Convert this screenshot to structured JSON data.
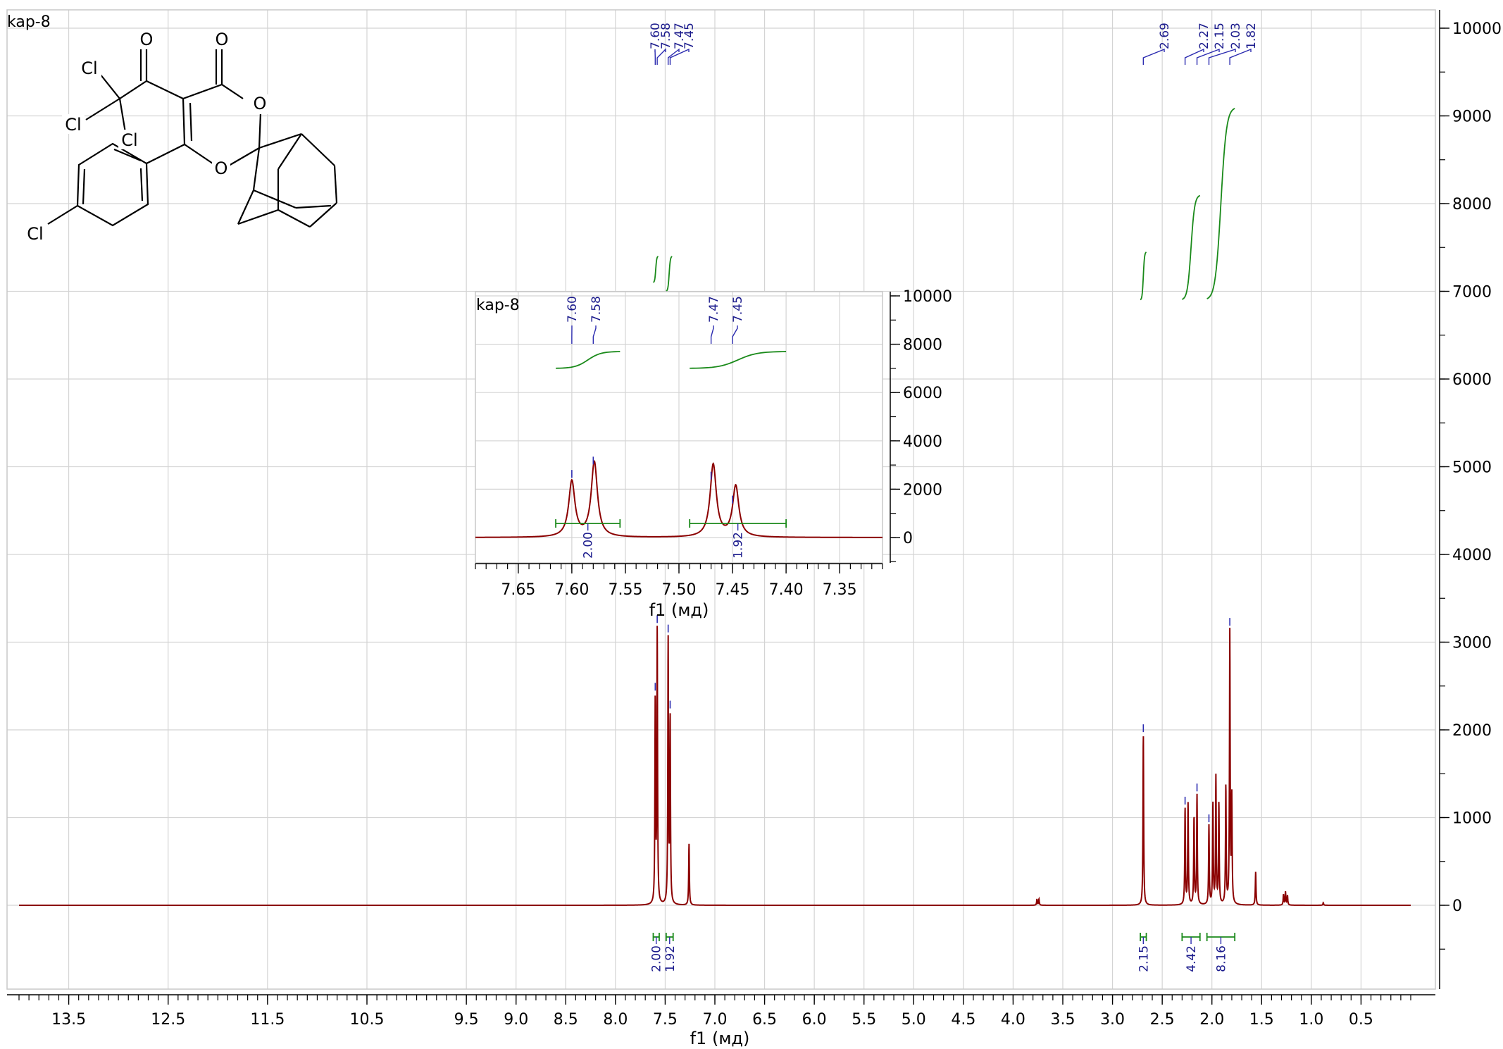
{
  "sample_label": "kap-8",
  "structure_atoms": [
    "O",
    "O",
    "Cl",
    "O",
    "Cl",
    "Cl",
    "O",
    "Cl"
  ],
  "chart_data": [
    {
      "type": "line",
      "title": "",
      "sample_label": "kap-8",
      "xlabel": "f1 (мд)",
      "ylabel": "",
      "xlim": [
        14.0,
        0.0
      ],
      "ylim": [
        -1000,
        10200
      ],
      "x_reversed": true,
      "grid": true,
      "xticks": [
        "13.5",
        "12.5",
        "11.5",
        "10.5",
        "9.5",
        "9.0",
        "8.5",
        "8.0",
        "7.5",
        "7.0",
        "6.5",
        "6.0",
        "5.5",
        "5.0",
        "4.5",
        "4.0",
        "3.5",
        "3.0",
        "2.5",
        "2.0",
        "1.5",
        "1.0",
        "0.5"
      ],
      "xtick_values": [
        13.5,
        12.5,
        11.5,
        10.5,
        9.5,
        9.0,
        8.5,
        8.0,
        7.5,
        7.0,
        6.5,
        6.0,
        5.5,
        5.0,
        4.5,
        4.0,
        3.5,
        3.0,
        2.5,
        2.0,
        1.5,
        1.0,
        0.5
      ],
      "yticks": [
        "10000",
        "9000",
        "8000",
        "7000",
        "6000",
        "5000",
        "4000",
        "3000",
        "2000",
        "1000",
        "0"
      ],
      "ytick_values": [
        10000,
        9000,
        8000,
        7000,
        6000,
        5000,
        4000,
        3000,
        2000,
        1000,
        0
      ],
      "peaks": [
        {
          "x": 7.6,
          "y": 2300
        },
        {
          "x": 7.58,
          "y": 3100
        },
        {
          "x": 7.47,
          "y": 3000
        },
        {
          "x": 7.45,
          "y": 2100
        },
        {
          "x": 7.26,
          "y": 700
        },
        {
          "x": 3.76,
          "y": 70
        },
        {
          "x": 3.74,
          "y": 70
        },
        {
          "x": 2.69,
          "y": 1950
        },
        {
          "x": 2.27,
          "y": 1100
        },
        {
          "x": 2.24,
          "y": 1150
        },
        {
          "x": 2.18,
          "y": 1000
        },
        {
          "x": 2.15,
          "y": 1250
        },
        {
          "x": 2.03,
          "y": 900
        },
        {
          "x": 1.99,
          "y": 1150
        },
        {
          "x": 1.96,
          "y": 1450
        },
        {
          "x": 1.93,
          "y": 1150
        },
        {
          "x": 1.86,
          "y": 1350
        },
        {
          "x": 1.82,
          "y": 3100
        },
        {
          "x": 1.8,
          "y": 1200
        },
        {
          "x": 1.56,
          "y": 380
        },
        {
          "x": 1.28,
          "y": 120
        },
        {
          "x": 1.26,
          "y": 150
        },
        {
          "x": 1.24,
          "y": 110
        },
        {
          "x": 0.88,
          "y": 30
        }
      ],
      "peak_labels": [
        "7.60",
        "7.58",
        "7.47",
        "7.45",
        "2.69",
        "2.27",
        "2.15",
        "2.03",
        "1.82"
      ],
      "peak_label_values": [
        7.6,
        7.58,
        7.47,
        7.45,
        2.69,
        2.27,
        2.15,
        2.03,
        1.82
      ],
      "integrals": [
        {
          "label": "2.00",
          "from": 7.62,
          "to": 7.56
        },
        {
          "label": "1.92",
          "from": 7.49,
          "to": 7.42
        },
        {
          "label": "2.15",
          "from": 2.72,
          "to": 2.66
        },
        {
          "label": "4.42",
          "from": 2.3,
          "to": 2.12
        },
        {
          "label": "8.16",
          "from": 2.05,
          "to": 1.77
        }
      ],
      "integral_curves": [
        {
          "from": 7.62,
          "to": 7.57,
          "y0": 7100,
          "y1": 7400
        },
        {
          "from": 7.49,
          "to": 7.43,
          "y0": 7000,
          "y1": 7400
        },
        {
          "from": 2.72,
          "to": 2.66,
          "y0": 6900,
          "y1": 7450
        },
        {
          "from": 2.3,
          "to": 2.12,
          "y0": 6900,
          "y1": 8100
        },
        {
          "from": 2.05,
          "to": 1.77,
          "y0": 6900,
          "y1": 9100
        }
      ]
    },
    {
      "type": "line",
      "title": "",
      "sample_label": "kap-8",
      "xlabel": "f1 (мд)",
      "ylabel": "",
      "xlim": [
        7.69,
        7.31
      ],
      "ylim": [
        -1000,
        10000
      ],
      "x_reversed": true,
      "grid": true,
      "xticks": [
        "7.65",
        "7.60",
        "7.55",
        "7.50",
        "7.45",
        "7.40",
        "7.35"
      ],
      "xtick_values": [
        7.65,
        7.6,
        7.55,
        7.5,
        7.45,
        7.4,
        7.35
      ],
      "yticks": [
        "10000",
        "8000",
        "6000",
        "4000",
        "2000",
        "0"
      ],
      "ytick_values": [
        10000,
        8000,
        6000,
        4000,
        2000,
        0
      ],
      "peaks": [
        {
          "x": 7.6,
          "y": 2300
        },
        {
          "x": 7.579,
          "y": 3100
        },
        {
          "x": 7.468,
          "y": 3000
        },
        {
          "x": 7.447,
          "y": 2100
        }
      ],
      "peak_labels": [
        "7.60",
        "7.58",
        "7.47",
        "7.45"
      ],
      "peak_label_values": [
        7.6,
        7.58,
        7.47,
        7.45
      ],
      "integrals": [
        {
          "label": "2.00",
          "from": 7.615,
          "to": 7.555
        },
        {
          "label": "1.92",
          "from": 7.49,
          "to": 7.4
        }
      ],
      "integral_curves": [
        {
          "from": 7.615,
          "to": 7.555,
          "y0": 7000,
          "y1": 7700
        },
        {
          "from": 7.49,
          "to": 7.4,
          "y0": 7000,
          "y1": 7700
        }
      ]
    }
  ]
}
